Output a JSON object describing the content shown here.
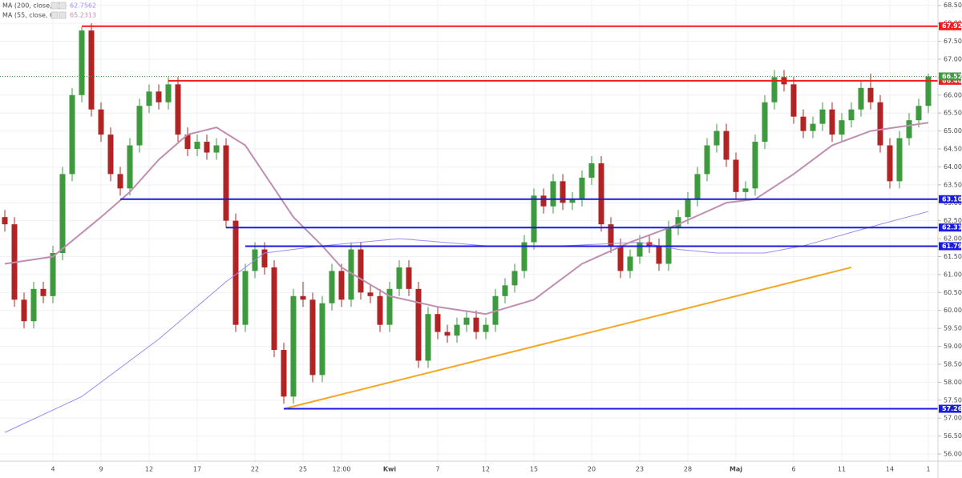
{
  "chart_data": {
    "type": "candlestick",
    "colors": {
      "up": "#3d9a3d",
      "down": "#b22424"
    },
    "grid": true,
    "categories": [
      null,
      null,
      null,
      null,
      null,
      "4",
      null,
      null,
      null,
      null,
      "9",
      null,
      null,
      null,
      null,
      "12",
      null,
      null,
      null,
      null,
      "17",
      null,
      null,
      null,
      null,
      null,
      "22",
      null,
      null,
      null,
      null,
      "25",
      null,
      null,
      null,
      "12:00",
      null,
      null,
      null,
      null,
      "Kwi",
      null,
      null,
      null,
      null,
      "7",
      null,
      null,
      null,
      null,
      "12",
      null,
      null,
      null,
      null,
      "15",
      null,
      null,
      null,
      null,
      null,
      "20",
      null,
      null,
      null,
      null,
      "23",
      null,
      null,
      null,
      null,
      "28",
      null,
      null,
      null,
      null,
      "Maj",
      null,
      null,
      null,
      null,
      null,
      "6",
      null,
      null,
      null,
      null,
      "11",
      null,
      null,
      null,
      null,
      "14",
      null,
      null,
      null,
      "1"
    ],
    "candles": [
      [
        62.6,
        62.8,
        62.2,
        62.4
      ],
      [
        62.4,
        62.6,
        60.1,
        60.3
      ],
      [
        60.3,
        60.5,
        59.5,
        59.7
      ],
      [
        59.7,
        60.8,
        59.5,
        60.6
      ],
      [
        60.6,
        60.8,
        60.2,
        60.4
      ],
      [
        60.4,
        61.8,
        60.2,
        61.6
      ],
      [
        61.6,
        64.0,
        61.4,
        63.8
      ],
      [
        63.8,
        66.2,
        63.6,
        66.0
      ],
      [
        66.0,
        67.9,
        65.8,
        67.8
      ],
      [
        67.8,
        68.0,
        65.4,
        65.6
      ],
      [
        65.6,
        65.8,
        64.7,
        64.9
      ],
      [
        64.9,
        65.1,
        63.6,
        63.8
      ],
      [
        63.8,
        64.0,
        63.2,
        63.4
      ],
      [
        63.4,
        64.8,
        63.2,
        64.6
      ],
      [
        64.6,
        65.9,
        64.4,
        65.7
      ],
      [
        65.7,
        66.3,
        65.5,
        66.1
      ],
      [
        66.1,
        66.3,
        65.6,
        65.8
      ],
      [
        65.8,
        66.5,
        65.6,
        66.3
      ],
      [
        66.3,
        66.5,
        64.7,
        64.9
      ],
      [
        64.9,
        65.1,
        64.3,
        64.5
      ],
      [
        64.5,
        64.9,
        64.3,
        64.7
      ],
      [
        64.7,
        64.9,
        64.2,
        64.4
      ],
      [
        64.4,
        64.8,
        64.2,
        64.6
      ],
      [
        64.6,
        64.8,
        62.3,
        62.5
      ],
      [
        62.5,
        62.7,
        59.4,
        59.6
      ],
      [
        59.6,
        61.3,
        59.4,
        61.1
      ],
      [
        61.1,
        61.9,
        60.9,
        61.7
      ],
      [
        61.7,
        61.9,
        61.0,
        61.2
      ],
      [
        61.2,
        61.4,
        58.7,
        58.9
      ],
      [
        58.9,
        59.1,
        57.4,
        57.6
      ],
      [
        57.6,
        60.6,
        57.4,
        60.4
      ],
      [
        60.4,
        60.8,
        60.1,
        60.3
      ],
      [
        60.3,
        60.5,
        58.0,
        58.2
      ],
      [
        58.2,
        60.4,
        58.0,
        60.2
      ],
      [
        60.2,
        61.3,
        60.0,
        61.1
      ],
      [
        61.1,
        61.3,
        60.1,
        60.3
      ],
      [
        60.3,
        61.9,
        60.1,
        61.7
      ],
      [
        61.7,
        61.9,
        60.3,
        60.5
      ],
      [
        60.5,
        60.7,
        60.2,
        60.4
      ],
      [
        60.4,
        60.6,
        59.4,
        59.6
      ],
      [
        59.6,
        60.8,
        59.4,
        60.6
      ],
      [
        60.6,
        61.4,
        60.4,
        61.2
      ],
      [
        61.2,
        61.4,
        60.4,
        60.6
      ],
      [
        60.6,
        60.8,
        58.4,
        58.6
      ],
      [
        58.6,
        60.1,
        58.4,
        59.9
      ],
      [
        59.9,
        60.1,
        59.2,
        59.4
      ],
      [
        59.4,
        59.6,
        59.1,
        59.3
      ],
      [
        59.3,
        59.8,
        59.1,
        59.6
      ],
      [
        59.6,
        60.0,
        59.4,
        59.8
      ],
      [
        59.8,
        60.0,
        59.2,
        59.4
      ],
      [
        59.4,
        59.8,
        59.2,
        59.6
      ],
      [
        59.6,
        60.6,
        59.4,
        60.4
      ],
      [
        60.4,
        60.9,
        60.2,
        60.7
      ],
      [
        60.7,
        61.3,
        60.5,
        61.1
      ],
      [
        61.1,
        62.1,
        60.9,
        61.9
      ],
      [
        61.9,
        63.4,
        61.7,
        63.2
      ],
      [
        63.2,
        63.4,
        62.7,
        62.9
      ],
      [
        62.9,
        63.8,
        62.7,
        63.6
      ],
      [
        63.6,
        63.8,
        62.8,
        63.0
      ],
      [
        63.0,
        63.3,
        62.8,
        63.1
      ],
      [
        63.1,
        63.9,
        62.9,
        63.7
      ],
      [
        63.7,
        64.3,
        63.5,
        64.1
      ],
      [
        64.1,
        64.3,
        62.2,
        62.4
      ],
      [
        62.4,
        62.6,
        61.6,
        61.8
      ],
      [
        61.8,
        62.0,
        60.9,
        61.1
      ],
      [
        61.1,
        61.7,
        60.9,
        61.5
      ],
      [
        61.5,
        62.1,
        61.3,
        61.9
      ],
      [
        61.9,
        62.1,
        61.6,
        61.8
      ],
      [
        61.8,
        62.0,
        61.1,
        61.3
      ],
      [
        61.3,
        62.5,
        61.1,
        62.3
      ],
      [
        62.3,
        62.8,
        62.1,
        62.6
      ],
      [
        62.6,
        63.3,
        62.4,
        63.1
      ],
      [
        63.1,
        64.0,
        62.9,
        63.8
      ],
      [
        63.8,
        64.8,
        63.6,
        64.6
      ],
      [
        64.6,
        65.2,
        64.4,
        65.0
      ],
      [
        65.0,
        65.2,
        64.0,
        64.2
      ],
      [
        64.2,
        64.4,
        63.1,
        63.3
      ],
      [
        63.3,
        63.6,
        63.1,
        63.4
      ],
      [
        63.4,
        64.9,
        63.2,
        64.7
      ],
      [
        64.7,
        66.0,
        64.5,
        65.8
      ],
      [
        65.8,
        66.7,
        65.6,
        66.5
      ],
      [
        66.5,
        66.7,
        66.1,
        66.3
      ],
      [
        66.3,
        66.5,
        65.2,
        65.4
      ],
      [
        65.4,
        65.6,
        64.8,
        65.0
      ],
      [
        65.0,
        65.4,
        64.8,
        65.2
      ],
      [
        65.2,
        65.8,
        65.0,
        65.6
      ],
      [
        65.6,
        65.8,
        64.7,
        64.9
      ],
      [
        64.9,
        65.5,
        64.7,
        65.3
      ],
      [
        65.3,
        65.8,
        65.1,
        65.6
      ],
      [
        65.6,
        66.4,
        65.4,
        66.2
      ],
      [
        66.2,
        66.6,
        65.6,
        65.8
      ],
      [
        65.8,
        66.0,
        64.4,
        64.6
      ],
      [
        64.6,
        64.8,
        63.4,
        63.6
      ],
      [
        63.6,
        65.0,
        63.4,
        64.8
      ],
      [
        64.8,
        65.5,
        64.6,
        65.3
      ],
      [
        65.3,
        65.9,
        65.1,
        65.7
      ],
      [
        65.7,
        66.6,
        65.5,
        66.52
      ]
    ],
    "series": [
      {
        "name": "MA (200, close, 0)",
        "color": "#9b8cf0",
        "width": 1,
        "x": [
          0,
          8,
          16,
          23,
          27,
          33,
          41,
          50,
          58,
          66,
          70,
          74,
          79,
          83,
          91,
          96
        ],
        "values": [
          56.6,
          57.6,
          59.2,
          60.8,
          61.6,
          61.8,
          62.0,
          61.8,
          61.8,
          61.9,
          61.7,
          61.6,
          61.6,
          61.8,
          62.4,
          62.7562
        ]
      },
      {
        "name": "MA (55, close, 0)",
        "color": "#c08fb0",
        "width": 2,
        "x": [
          0,
          5,
          10,
          13,
          16,
          19,
          22,
          25,
          28,
          30,
          33,
          35,
          40,
          45,
          50,
          55,
          60,
          65,
          70,
          75,
          78,
          82,
          86,
          90,
          96
        ],
        "values": [
          61.3,
          61.5,
          62.6,
          63.3,
          64.2,
          64.9,
          65.1,
          64.6,
          63.4,
          62.6,
          61.8,
          61.2,
          60.4,
          60.1,
          59.9,
          60.3,
          61.3,
          61.9,
          62.4,
          63.0,
          63.1,
          63.8,
          64.6,
          65.0,
          65.2313
        ]
      }
    ],
    "levels": [
      {
        "value": 67.92,
        "label": "67.92",
        "color": "#f21b1b",
        "start": 8
      },
      {
        "value": 66.4,
        "label": "66.40",
        "color": "#f21b1b",
        "start": 17
      },
      {
        "value": 63.1,
        "label": "63.10",
        "color": "#1a1ae6",
        "start": 12
      },
      {
        "value": 62.31,
        "label": "62.31",
        "color": "#1a1ae6",
        "start": 23
      },
      {
        "value": 61.79,
        "label": "61.79",
        "color": "#1a1ae6",
        "start": 25
      },
      {
        "value": 57.26,
        "label": "57.26",
        "color": "#1a1ae6",
        "start": 29
      }
    ],
    "last_price": {
      "value": 66.52,
      "label": "66.52",
      "color": "#3d9a3d"
    },
    "trendline": {
      "x": [
        29,
        88
      ],
      "values": [
        57.26,
        61.2
      ],
      "color": "#f5a623"
    },
    "ylim": [
      55.8,
      68.65
    ],
    "yticks": [
      {
        "value": 56,
        "label": "56.00"
      },
      {
        "value": 56.5,
        "label": "56.50"
      },
      {
        "value": 57,
        "label": "57.00"
      },
      {
        "value": 57.5,
        "label": "57.50"
      },
      {
        "value": 58,
        "label": "58.00"
      },
      {
        "value": 58.5,
        "label": "58.50"
      },
      {
        "value": 59,
        "label": "59.00"
      },
      {
        "value": 59.5,
        "label": "59.50"
      },
      {
        "value": 60,
        "label": "60.00"
      },
      {
        "value": 60.5,
        "label": "60.50"
      },
      {
        "value": 61,
        "label": "61.00"
      },
      {
        "value": 61.5,
        "label": "61.50"
      },
      {
        "value": 62,
        "label": "62.00"
      },
      {
        "value": 62.5,
        "label": "62.50"
      },
      {
        "value": 63,
        "label": "63.00"
      },
      {
        "value": 63.5,
        "label": "63.50"
      },
      {
        "value": 64,
        "label": "64.00"
      },
      {
        "value": 64.5,
        "label": "64.50"
      },
      {
        "value": 65,
        "label": "65.00"
      },
      {
        "value": 65.5,
        "label": "65.50"
      },
      {
        "value": 66,
        "label": "66.00"
      },
      {
        "value": 66.5,
        "label": "66.50"
      },
      {
        "value": 67,
        "label": "67.00"
      },
      {
        "value": 67.5,
        "label": "67.50"
      },
      {
        "value": 68,
        "label": "68.00"
      },
      {
        "value": 68.5,
        "label": "68.50"
      }
    ]
  }
}
